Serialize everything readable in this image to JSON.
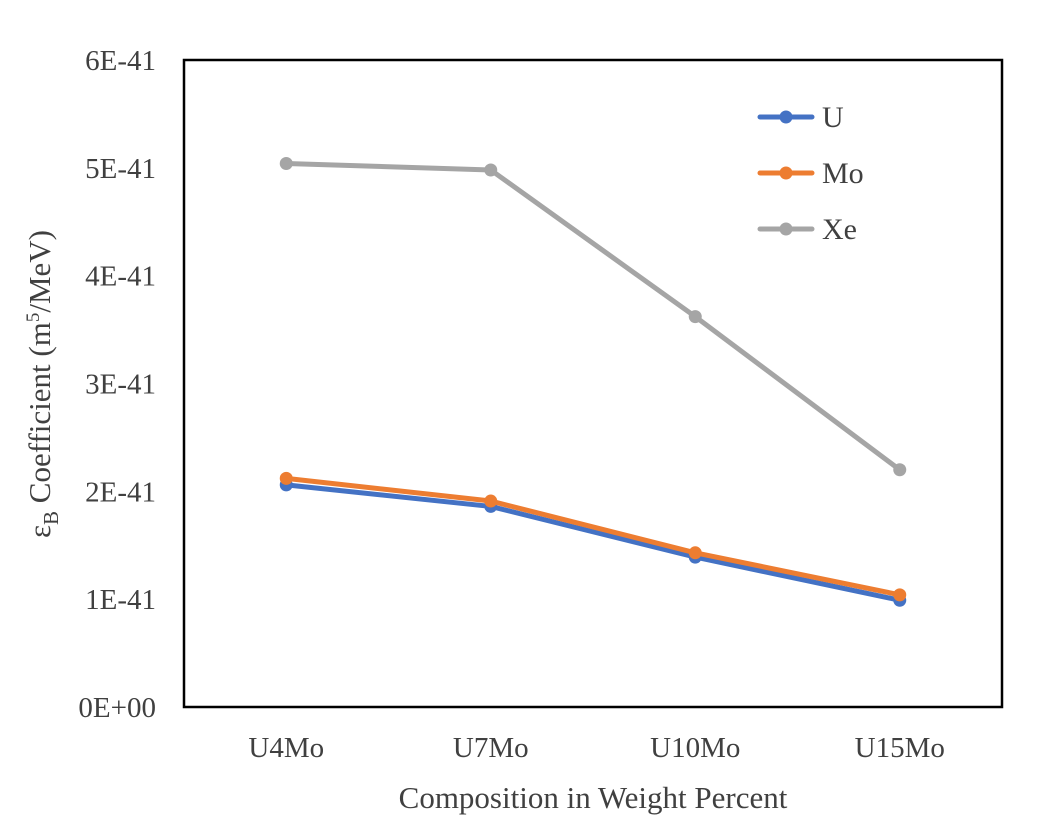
{
  "chart_data": {
    "type": "line",
    "title": "",
    "xlabel": "Composition in Weight Percent",
    "ylabel": {
      "prefix": "ε",
      "subscript": "B",
      "main": " Coefficient (m",
      "superscript": "5",
      "suffix": "/MeV)"
    },
    "categories": [
      "U4Mo",
      "U7Mo",
      "U10Mo",
      "U15Mo"
    ],
    "ylim": [
      0,
      6e-41
    ],
    "yticks": [
      0,
      1e-41,
      2e-41,
      3e-41,
      4e-41,
      5e-41,
      6e-41
    ],
    "ytick_labels": [
      "0E+00",
      "1E-41",
      "2E-41",
      "3E-41",
      "4E-41",
      "5E-41",
      "6E-41"
    ],
    "grid": false,
    "legend_position": "top-right",
    "series": [
      {
        "name": "U",
        "color": "#4472C4",
        "values": [
          2.06e-41,
          1.86e-41,
          1.39e-41,
          9.9e-42
        ]
      },
      {
        "name": "Mo",
        "color": "#ED7D31",
        "values": [
          2.12e-41,
          1.91e-41,
          1.43e-41,
          1.04e-41
        ]
      },
      {
        "name": "Xe",
        "color": "#A5A5A5",
        "values": [
          5.04e-41,
          4.98e-41,
          3.62e-41,
          2.2e-41
        ]
      }
    ]
  }
}
